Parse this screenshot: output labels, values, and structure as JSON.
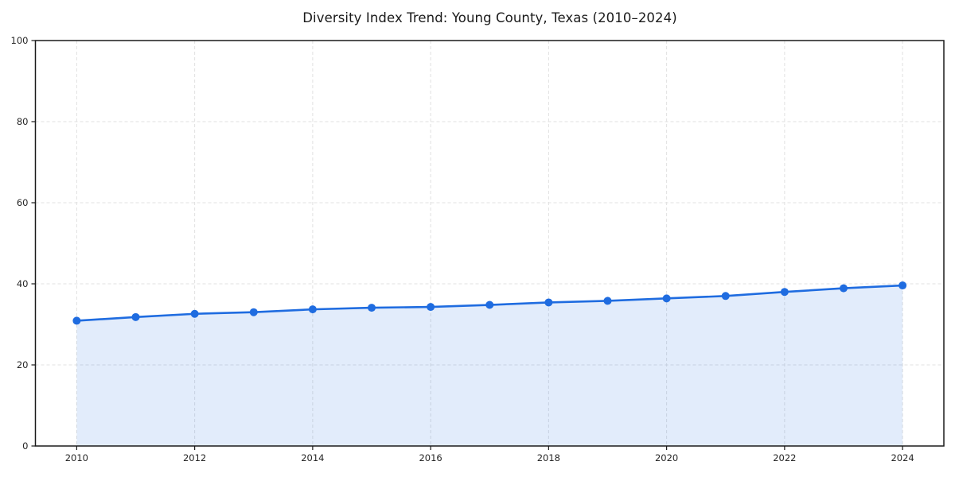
{
  "chart_data": {
    "type": "area",
    "title": "Diversity Index Trend: Young County, Texas (2010–2024)",
    "series_name": "Diversity Index",
    "x": [
      2010,
      2011,
      2012,
      2013,
      2014,
      2015,
      2016,
      2017,
      2018,
      2019,
      2020,
      2021,
      2022,
      2023,
      2024
    ],
    "values": [
      30.9,
      31.8,
      32.6,
      33.0,
      33.7,
      34.1,
      34.3,
      34.8,
      35.4,
      35.8,
      36.4,
      37.0,
      38.0,
      38.9,
      39.6
    ],
    "xlabel": "",
    "ylabel": "",
    "xlim": [
      2009.3,
      2024.7
    ],
    "ylim": [
      0,
      100
    ],
    "xticks": [
      2010,
      2012,
      2014,
      2016,
      2018,
      2020,
      2022,
      2024
    ],
    "yticks": [
      0,
      20,
      40,
      60,
      80,
      100
    ],
    "grid": "dashed",
    "legend": "none",
    "colors": {
      "line": "#1f6ce0",
      "marker": "#1f6ce0",
      "fill": "rgba(31,108,224,0.13)",
      "grid": "#e0e0e0",
      "axis": "#1a1a1a",
      "tick_text": "#262626",
      "background": "#ffffff"
    }
  }
}
